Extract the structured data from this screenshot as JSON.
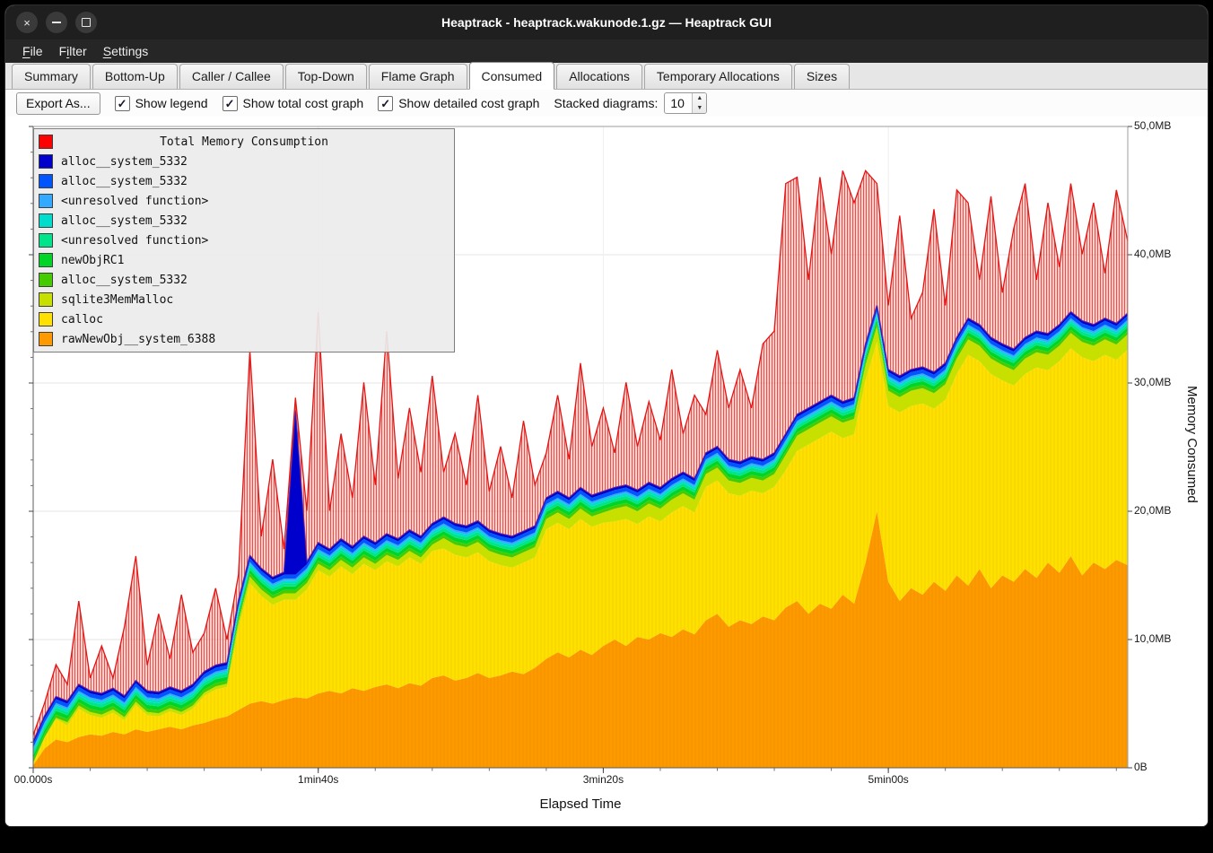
{
  "window": {
    "title": "Heaptrack - heaptrack.wakunode.1.gz — Heaptrack GUI"
  },
  "menu": {
    "items": [
      {
        "label": "File",
        "underline": 0
      },
      {
        "label": "Filter",
        "underline": 1
      },
      {
        "label": "Settings",
        "underline": 0
      }
    ]
  },
  "tabs": {
    "items": [
      "Summary",
      "Bottom-Up",
      "Caller / Callee",
      "Top-Down",
      "Flame Graph",
      "Consumed",
      "Allocations",
      "Temporary Allocations",
      "Sizes"
    ],
    "active": "Consumed"
  },
  "toolbar": {
    "export_label": "Export As...",
    "checkboxes": [
      {
        "label": "Show legend",
        "checked": true
      },
      {
        "label": "Show total cost graph",
        "checked": true
      },
      {
        "label": "Show detailed cost graph",
        "checked": true
      }
    ],
    "stacked_label": "Stacked diagrams:",
    "stacked_value": "10"
  },
  "chart_data": {
    "type": "area",
    "title": "Total Memory Consumption",
    "xlabel": "Elapsed Time",
    "ylabel": "Memory Consumed",
    "xlim": [
      0,
      384
    ],
    "ylim": [
      0,
      50
    ],
    "x_minor_step": 20,
    "y_minor_step": 2,
    "x_ticks": [
      {
        "t": 0,
        "label": "00.000s"
      },
      {
        "t": 100,
        "label": "1min40s"
      },
      {
        "t": 200,
        "label": "3min20s"
      },
      {
        "t": 300,
        "label": "5min00s"
      }
    ],
    "y_ticks": [
      {
        "v": 0,
        "label": "0B"
      },
      {
        "v": 10,
        "label": "10,0MB"
      },
      {
        "v": 20,
        "label": "20,0MB"
      },
      {
        "v": 30,
        "label": "30,0MB"
      },
      {
        "v": 40,
        "label": "40,0MB"
      },
      {
        "v": 50,
        "label": "50,0MB"
      }
    ],
    "x": [
      0,
      4,
      8,
      12,
      16,
      20,
      24,
      28,
      32,
      36,
      40,
      44,
      48,
      52,
      56,
      60,
      64,
      68,
      72,
      76,
      80,
      84,
      88,
      92,
      96,
      100,
      104,
      108,
      112,
      116,
      120,
      124,
      128,
      132,
      136,
      140,
      144,
      148,
      152,
      156,
      160,
      164,
      168,
      172,
      176,
      180,
      184,
      188,
      192,
      196,
      200,
      204,
      208,
      212,
      216,
      220,
      224,
      228,
      232,
      236,
      240,
      244,
      248,
      252,
      256,
      260,
      264,
      268,
      272,
      276,
      280,
      284,
      288,
      292,
      296,
      300,
      304,
      308,
      312,
      316,
      320,
      324,
      328,
      332,
      336,
      340,
      344,
      348,
      352,
      356,
      360,
      364,
      368,
      372,
      376,
      380,
      384
    ],
    "series": [
      {
        "name": "rawNewObj__system_6388",
        "color": "#ff9900",
        "values": [
          0.2,
          1.5,
          2.2,
          2.0,
          2.4,
          2.6,
          2.5,
          2.8,
          2.6,
          3.0,
          2.8,
          3.0,
          3.2,
          3.0,
          3.3,
          3.5,
          3.8,
          4.0,
          4.5,
          5.0,
          5.2,
          5.0,
          5.3,
          5.5,
          5.4,
          5.8,
          6.0,
          5.8,
          6.2,
          6.0,
          6.3,
          6.5,
          6.2,
          6.6,
          6.4,
          7.0,
          7.2,
          6.8,
          7.0,
          7.4,
          7.0,
          7.2,
          7.5,
          7.3,
          7.8,
          8.5,
          9.0,
          8.6,
          9.2,
          8.8,
          9.5,
          10.0,
          9.5,
          10.2,
          10.0,
          10.5,
          10.2,
          10.8,
          10.4,
          11.5,
          12.0,
          11.0,
          11.5,
          11.2,
          11.8,
          11.5,
          12.5,
          13.0,
          12.0,
          12.8,
          12.4,
          13.5,
          12.8,
          16.0,
          20.0,
          14.5,
          13.0,
          14.0,
          13.5,
          14.5,
          13.8,
          15.0,
          14.2,
          15.5,
          14.0,
          15.0,
          14.5,
          15.5,
          14.8,
          16.0,
          15.2,
          16.5,
          15.0,
          16.0,
          15.5,
          16.2,
          15.8
        ]
      },
      {
        "name": "calloc",
        "color": "#ffe000",
        "values": [
          0.1,
          0.8,
          1.6,
          1.3,
          2.2,
          1.5,
          1.4,
          1.5,
          1.1,
          1.9,
          1.3,
          1.0,
          1.2,
          1.1,
          1.3,
          2.1,
          2.3,
          2.3,
          6.4,
          9.4,
          8.2,
          7.7,
          7.8,
          7.6,
          8.5,
          9.6,
          8.9,
          9.9,
          8.9,
          9.9,
          9.1,
          9.6,
          9.5,
          9.8,
          9.5,
          9.9,
          9.9,
          9.8,
          9.4,
          9.4,
          9.1,
          8.6,
          8.1,
          8.7,
          8.6,
          10.1,
          10.1,
          10.0,
          10.2,
          10.0,
          9.6,
          9.2,
          9.9,
          8.8,
          9.6,
          8.7,
          9.7,
          9.6,
          9.5,
          10.4,
          10.4,
          10.4,
          9.7,
          10.4,
          9.6,
          10.4,
          10.7,
          11.7,
          13.2,
          12.9,
          13.8,
          12.2,
          13.2,
          14.2,
          13.2,
          13.7,
          14.7,
          14.2,
          14.9,
          13.5,
          14.9,
          15.7,
          18.0,
          16.2,
          16.7,
          15.2,
          15.3,
          15.2,
          16.4,
          15.0,
          16.5,
          16.2,
          17.0,
          15.7,
          16.7,
          15.6,
          16.8
        ]
      },
      {
        "name": "sqlite3MemMalloc",
        "color": "#c8e000",
        "values": [
          0.1,
          0.1,
          0.1,
          0.25,
          0.25,
          0.25,
          0.25,
          0.25,
          0.25,
          0.25,
          0.25,
          0.25,
          0.25,
          0.25,
          0.25,
          0.25,
          0.25,
          0.25,
          0.5,
          0.5,
          0.5,
          0.5,
          0.5,
          0.5,
          0.5,
          0.5,
          0.5,
          0.5,
          0.5,
          0.5,
          0.5,
          0.5,
          0.5,
          0.5,
          0.5,
          0.5,
          0.8,
          0.8,
          0.8,
          0.8,
          0.8,
          0.8,
          0.8,
          0.8,
          0.8,
          0.8,
          0.8,
          0.8,
          0.8,
          0.8,
          0.8,
          1.0,
          1.0,
          1.0,
          1.0,
          1.0,
          1.0,
          1.0,
          1.0,
          1.0,
          1.0,
          1.0,
          1.0,
          1.0,
          1.0,
          1.0,
          1.2,
          1.2,
          1.2,
          1.2,
          1.2,
          1.2,
          1.2,
          1.2,
          1.2,
          1.2,
          1.2,
          1.2,
          1.2,
          1.2,
          1.2,
          1.2,
          1.2,
          1.2,
          1.2,
          1.2,
          1.2,
          1.2,
          1.2,
          1.2,
          1.2,
          1.2,
          1.2,
          1.2,
          1.2,
          1.2,
          1.2
        ]
      },
      {
        "name": "alloc__system_5332",
        "color": "#44cc00",
        "constant": 0.25
      },
      {
        "name": "newObjRC1",
        "color": "#00d426",
        "constant": 0.3
      },
      {
        "name": "<unresolved function>",
        "color": "#00e58c",
        "constant": 0.25
      },
      {
        "name": "alloc__system_5332",
        "color": "#00ddcc",
        "constant": 0.2
      },
      {
        "name": "<unresolved function>",
        "color": "#33aaff",
        "constant": 0.15
      },
      {
        "name": "alloc__system_5332",
        "color": "#0055ff",
        "constant": 0.3
      },
      {
        "name": "alloc__system_5332",
        "color": "#0000cc",
        "edge": "#1414c8",
        "values": [
          0.2,
          0.2,
          0.2,
          0.2,
          0.2,
          0.2,
          0.2,
          0.2,
          0.2,
          0.2,
          0.2,
          0.2,
          0.2,
          0.2,
          0.2,
          0.2,
          0.2,
          0.2,
          0.2,
          0.2,
          0.2,
          0.2,
          0.2,
          12.8,
          0.2,
          0.2,
          0.2,
          0.2,
          0.2,
          0.2,
          0.2,
          0.2,
          0.2,
          0.2,
          0.2,
          0.2,
          0.2,
          0.2,
          0.2,
          0.2,
          0.2,
          0.2,
          0.2,
          0.2,
          0.2,
          0.2,
          0.2,
          0.2,
          0.2,
          0.2,
          0.2,
          0.2,
          0.2,
          0.2,
          0.2,
          0.2,
          0.2,
          0.2,
          0.2,
          0.2,
          0.2,
          0.2,
          0.2,
          0.2,
          0.2,
          0.2,
          0.2,
          0.2,
          0.2,
          0.2,
          0.2,
          0.2,
          0.2,
          0.2,
          0.2,
          0.2,
          0.2,
          0.2,
          0.2,
          0.2,
          0.2,
          0.2,
          0.2,
          0.2,
          0.2,
          0.2,
          0.2,
          0.2,
          0.2,
          0.2,
          0.2,
          0.2,
          0.2,
          0.2,
          0.2,
          0.2,
          0.2
        ]
      },
      {
        "name": "Total Memory Consumption",
        "color": "#ff0000",
        "style": "hatched",
        "values": [
          0.5,
          1.0,
          2.5,
          1.3,
          6.5,
          1.0,
          3.7,
          0.8,
          5.4,
          9.7,
          2.0,
          6.1,
          2.2,
          7.5,
          2.5,
          3.0,
          6.0,
          1.8,
          2.0,
          16.0,
          2.5,
          9.2,
          1.8,
          1.0,
          4.0,
          18.0,
          3.0,
          8.2,
          3.8,
          12.0,
          4.5,
          15.8,
          4.7,
          9.5,
          5.0,
          11.5,
          3.5,
          7.0,
          3.2,
          9.8,
          3.0,
          6.8,
          3.0,
          8.6,
          3.2,
          3.5,
          7.5,
          3.0,
          9.7,
          3.8,
          6.5,
          2.7,
          8.0,
          3.4,
          6.3,
          3.7,
          8.5,
          3.0,
          6.5,
          3.0,
          7.5,
          4.0,
          7.2,
          3.8,
          9.0,
          9.5,
          19.5,
          18.5,
          10.0,
          17.5,
          11.0,
          18.0,
          15.2,
          13.5,
          9.5,
          5.0,
          12.5,
          4.0,
          5.8,
          12.7,
          4.5,
          11.5,
          9.0,
          3.5,
          11.0,
          4.0,
          9.4,
          12.0,
          4.0,
          10.2,
          4.5,
          10.0,
          5.2,
          9.5,
          3.5,
          10.4,
          5.6
        ]
      }
    ],
    "legend": [
      {
        "label": "Total Memory Consumption",
        "color": "#ff0000"
      },
      {
        "label": "alloc__system_5332",
        "color": "#0000cc"
      },
      {
        "label": "alloc__system_5332",
        "color": "#0055ff"
      },
      {
        "label": "<unresolved function>",
        "color": "#33aaff"
      },
      {
        "label": "alloc__system_5332",
        "color": "#00ddcc"
      },
      {
        "label": "<unresolved function>",
        "color": "#00e58c"
      },
      {
        "label": "newObjRC1",
        "color": "#00d426"
      },
      {
        "label": "alloc__system_5332",
        "color": "#44cc00"
      },
      {
        "label": "sqlite3MemMalloc",
        "color": "#c8e000"
      },
      {
        "label": "calloc",
        "color": "#ffe000"
      },
      {
        "label": "rawNewObj__system_6388",
        "color": "#ff9900"
      }
    ]
  }
}
